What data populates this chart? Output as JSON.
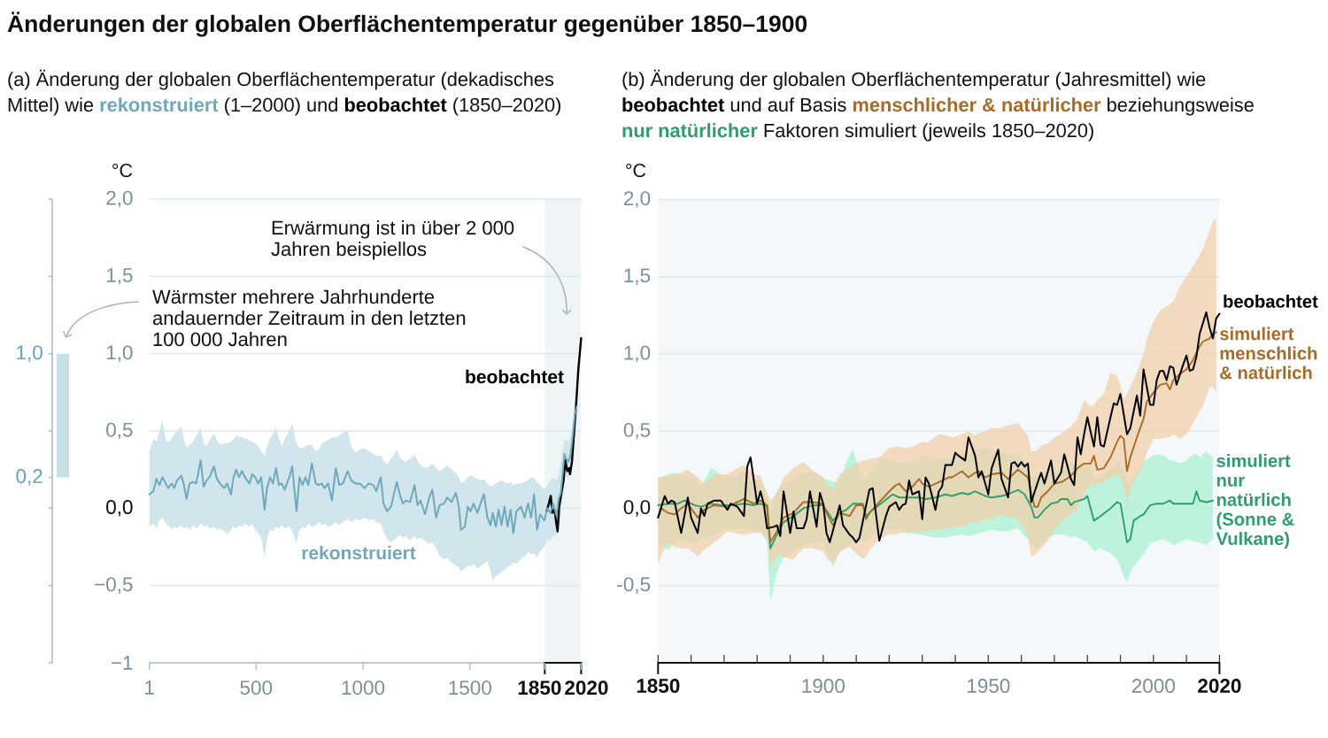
{
  "chart_data": [
    {
      "type": "line",
      "title": "Änderungen der globalen Oberflächentemperatur gegenüber 1850–1900",
      "subtitle": "(a) Änderung der globalen Oberflächentemperatur (dekadisches Mittel) wie **rekonstruiert** (1–2000) und **beobachtet** (1850–2020)",
      "ylabel": "°C",
      "annotations": [
        "Erwärmung ist in über 2 000 Jahren beispiellos"
      ],
      "xlim": [
        1,
        2020
      ],
      "ylim": [
        -1,
        2
      ],
      "xticks": [
        1,
        500,
        1000,
        1500,
        1850,
        2020
      ],
      "yticks": [
        {
          "value": -1,
          "label": "−1"
        },
        {
          "value": -0.5,
          "label": "−0,5"
        },
        {
          "value": 0,
          "label": "0,0"
        },
        {
          "value": 0.5,
          "label": "0,5"
        },
        {
          "value": 1,
          "label": "1,0"
        },
        {
          "value": 1.5,
          "label": "1,5"
        },
        {
          "value": 2,
          "label": "2,0"
        }
      ],
      "grid": "y",
      "bands": [
        {
          "axis": "x",
          "from": 1850,
          "to": 2020,
          "color": "#EFF5F7"
        }
      ],
      "series": [
        {
          "name": "rekonstruiert",
          "color": "#6FA8BC",
          "x": [
            1,
            20,
            34,
            48,
            62,
            78,
            89,
            106,
            117,
            131,
            151,
            161,
            175,
            189,
            206,
            220,
            241,
            255,
            269,
            282,
            303,
            317,
            331,
            351,
            365,
            383,
            393,
            407,
            420,
            434,
            448,
            469,
            482,
            496,
            510,
            524,
            540,
            551,
            565,
            579,
            593,
            607,
            620,
            634,
            655,
            669,
            689,
            703,
            717,
            731,
            744,
            761,
            779,
            793,
            807,
            820,
            837,
            855,
            873,
            889,
            906,
            928,
            945,
            965,
            986,
            1007,
            1027,
            1048,
            1062,
            1083,
            1096,
            1113,
            1131,
            1158,
            1172,
            1186,
            1200,
            1220,
            1241,
            1255,
            1269,
            1290,
            1310,
            1324,
            1342,
            1359,
            1379,
            1393,
            1414,
            1434,
            1448,
            1458,
            1476,
            1490,
            1503,
            1517,
            1535,
            1552,
            1565,
            1582,
            1596,
            1607,
            1621,
            1634,
            1648,
            1662,
            1676,
            1690,
            1703,
            1717,
            1738,
            1756,
            1772,
            1786,
            1800,
            1814,
            1828,
            1848,
            1862,
            1875,
            1890,
            1905,
            1915,
            1925,
            1935,
            1942,
            1950,
            1960,
            1968,
            1978,
            1990,
            2000
          ],
          "values": [
            0.09,
            0.11,
            0.19,
            0.15,
            0.2,
            0.16,
            0.13,
            0.16,
            0.13,
            0.18,
            0.21,
            0.16,
            0.06,
            0.16,
            0.17,
            0.16,
            0.31,
            0.14,
            0.18,
            0.2,
            0.27,
            0.19,
            0.16,
            0.13,
            0.16,
            0.09,
            0.19,
            0.25,
            0.2,
            0.24,
            0.2,
            0.16,
            0.22,
            0.2,
            0.16,
            0.2,
            -0.01,
            0.13,
            0.2,
            0.16,
            0.26,
            0.15,
            0.16,
            0.12,
            0.2,
            0.27,
            -0.02,
            0.2,
            0.15,
            0.2,
            0.15,
            0.29,
            0.16,
            0.15,
            0.16,
            0.13,
            0.16,
            0.05,
            0.26,
            0.15,
            0.16,
            0.24,
            0.18,
            0.16,
            0.16,
            0.13,
            0.16,
            0.15,
            0.11,
            0.2,
            0.03,
            -0.02,
            0.01,
            0.17,
            0.09,
            0.03,
            0.05,
            0.04,
            0.15,
            0.02,
            0.05,
            -0.04,
            0.07,
            0.12,
            -0.06,
            0.02,
            0.03,
            0.07,
            0.04,
            0.1,
            0.01,
            -0.14,
            -0.12,
            0.01,
            -0.02,
            0.03,
            -0.03,
            0.04,
            0.09,
            -0.06,
            -0.11,
            -0.03,
            -0.12,
            -0.01,
            -0.11,
            0.01,
            -0.12,
            -0.01,
            -0.16,
            -0.02,
            0.01,
            -0.06,
            0.03,
            -0.06,
            0.09,
            -0.14,
            -0.04,
            -0.08,
            0.0,
            -0.03,
            0.03,
            -0.05,
            0.06,
            0.1,
            0.24,
            0.35,
            0.32,
            0.3,
            0.33,
            0.43,
            0.6,
            0.66
          ],
          "lower": [
            -0.12,
            -0.1,
            -0.13,
            -0.08,
            -0.06,
            -0.1,
            -0.11,
            -0.14,
            -0.12,
            -0.13,
            -0.11,
            -0.13,
            -0.12,
            -0.14,
            -0.11,
            -0.13,
            -0.1,
            -0.12,
            -0.11,
            -0.13,
            -0.12,
            -0.14,
            -0.13,
            -0.15,
            -0.17,
            -0.14,
            -0.12,
            -0.13,
            -0.11,
            -0.12,
            -0.1,
            -0.12,
            -0.1,
            -0.14,
            -0.16,
            -0.19,
            -0.32,
            -0.2,
            -0.14,
            -0.15,
            -0.12,
            -0.13,
            -0.11,
            -0.13,
            -0.12,
            -0.15,
            -0.23,
            -0.14,
            -0.12,
            -0.13,
            -0.1,
            -0.12,
            -0.11,
            -0.09,
            -0.11,
            -0.1,
            -0.12,
            -0.11,
            -0.09,
            -0.11,
            -0.09,
            -0.07,
            -0.09,
            -0.07,
            -0.08,
            -0.06,
            -0.08,
            -0.07,
            -0.09,
            -0.1,
            -0.15,
            -0.2,
            -0.22,
            -0.19,
            -0.17,
            -0.19,
            -0.18,
            -0.21,
            -0.18,
            -0.2,
            -0.19,
            -0.21,
            -0.23,
            -0.22,
            -0.26,
            -0.31,
            -0.33,
            -0.32,
            -0.35,
            -0.37,
            -0.38,
            -0.41,
            -0.39,
            -0.37,
            -0.38,
            -0.36,
            -0.39,
            -0.37,
            -0.36,
            -0.34,
            -0.4,
            -0.47,
            -0.44,
            -0.43,
            -0.41,
            -0.4,
            -0.38,
            -0.37,
            -0.35,
            -0.36,
            -0.33,
            -0.31,
            -0.28,
            -0.3,
            -0.29,
            -0.32,
            -0.28,
            -0.25,
            -0.2,
            -0.21,
            -0.18,
            -0.17,
            -0.12,
            -0.05,
            0.1,
            0.2,
            0.21,
            0.19,
            0.22,
            0.3,
            0.5,
            0.62
          ],
          "upper": [
            0.37,
            0.45,
            0.43,
            0.5,
            0.57,
            0.44,
            0.43,
            0.45,
            0.48,
            0.5,
            0.53,
            0.45,
            0.39,
            0.41,
            0.43,
            0.47,
            0.52,
            0.42,
            0.4,
            0.44,
            0.48,
            0.44,
            0.41,
            0.42,
            0.42,
            0.43,
            0.44,
            0.47,
            0.46,
            0.46,
            0.45,
            0.44,
            0.43,
            0.42,
            0.4,
            0.37,
            0.34,
            0.4,
            0.45,
            0.48,
            0.52,
            0.45,
            0.4,
            0.45,
            0.5,
            0.55,
            0.42,
            0.39,
            0.39,
            0.4,
            0.41,
            0.41,
            0.37,
            0.38,
            0.42,
            0.43,
            0.44,
            0.46,
            0.46,
            0.47,
            0.49,
            0.5,
            0.4,
            0.36,
            0.38,
            0.39,
            0.37,
            0.35,
            0.34,
            0.34,
            0.31,
            0.28,
            0.32,
            0.38,
            0.33,
            0.31,
            0.3,
            0.32,
            0.35,
            0.31,
            0.28,
            0.26,
            0.27,
            0.29,
            0.26,
            0.24,
            0.26,
            0.28,
            0.25,
            0.23,
            0.2,
            0.16,
            0.18,
            0.2,
            0.21,
            0.2,
            0.19,
            0.18,
            0.19,
            0.16,
            0.14,
            0.15,
            0.16,
            0.17,
            0.18,
            0.17,
            0.16,
            0.17,
            0.15,
            0.16,
            0.16,
            0.17,
            0.18,
            0.2,
            0.2,
            0.17,
            0.15,
            0.12,
            0.15,
            0.18,
            0.2,
            0.18,
            0.22,
            0.3,
            0.4,
            0.45,
            0.44,
            0.43,
            0.45,
            0.52,
            0.66,
            0.7
          ]
        },
        {
          "name": "beobachtet",
          "color": "#000000",
          "x": [
            1858,
            1869,
            1878,
            1885,
            1896,
            1903,
            1910,
            1917,
            1927,
            1938,
            1946,
            1955,
            1963,
            1968,
            1977,
            1986,
            1996,
            2007,
            2020
          ],
          "values": [
            -0.02,
            0.03,
            0.08,
            -0.03,
            -0.01,
            -0.09,
            -0.15,
            0.01,
            0.09,
            0.18,
            0.31,
            0.24,
            0.26,
            0.22,
            0.3,
            0.47,
            0.66,
            0.9,
            1.1
          ]
        }
      ]
    },
    {
      "type": "bar",
      "categories": [
        null
      ],
      "values": [
        0.8
      ],
      "base": [
        0.2
      ],
      "color": "#C8DFE8",
      "ylim": [
        -1,
        2
      ],
      "yticks": [
        {
          "value": -1,
          "label": null
        },
        {
          "value": -0.5,
          "label": null
        },
        {
          "value": 0,
          "label": null
        },
        {
          "value": 0.2,
          "label": "0,2"
        },
        {
          "value": 0.5,
          "label": null
        },
        {
          "value": 1,
          "label": "1,0"
        },
        {
          "value": 1.5,
          "label": null
        },
        {
          "value": 2,
          "label": null
        }
      ],
      "tick_labels": "y",
      "annotations": [
        "Wärmster mehrere Jahrhunderte andauernder Zeitraum in den letzten 100 000 Jahren"
      ]
    },
    {
      "type": "line",
      "title": "(b) Änderung der globalen Oberflächentemperatur (Jahresmittel) wie **beobachtet** und auf Basis **menschlicher & natürlicher** beziehungsweise **nur natürlicher** Faktoren simuliert (jeweils 1850–2020)",
      "ylabel": "°C",
      "xlim": [
        1850,
        2020
      ],
      "ylim": [
        -1,
        2
      ],
      "xticks": [
        1850,
        {
          "value": 1860,
          "label": null
        },
        {
          "value": 1870,
          "label": null
        },
        {
          "value": 1880,
          "label": null
        },
        {
          "value": 1890,
          "label": null
        },
        1900,
        {
          "value": 1910,
          "label": null
        },
        {
          "value": 1920,
          "label": null
        },
        {
          "value": 1930,
          "label": null
        },
        {
          "value": 1940,
          "label": null
        },
        1950,
        {
          "value": 1960,
          "label": null
        },
        {
          "value": 1970,
          "label": null
        },
        {
          "value": 1980,
          "label": null
        },
        {
          "value": 1990,
          "label": null
        },
        2000,
        {
          "value": 2010,
          "label": null
        },
        2020
      ],
      "yticks": [
        {
          "value": -0.5,
          "label": "-0,5"
        },
        {
          "value": 0,
          "label": "0,0"
        },
        {
          "value": 0.5,
          "label": "0,5"
        },
        {
          "value": 1,
          "label": "1,0"
        },
        {
          "value": 1.5,
          "label": "1,5"
        },
        {
          "value": 2,
          "label": "2,0"
        }
      ],
      "grid": "y",
      "bands": [
        {
          "axis": "x",
          "from": 1850,
          "to": 2020,
          "color": "#F4F8FA"
        }
      ],
      "series": [
        {
          "name": "beobachtet",
          "color": "#000000",
          "x": [
            1850,
            1852,
            1853,
            1854,
            1855,
            1857,
            1859,
            1860,
            1862,
            1863,
            1864,
            1865,
            1867,
            1869,
            1871,
            1872,
            1874,
            1875,
            1876,
            1877,
            1878,
            1880,
            1881,
            1882,
            1883,
            1885,
            1886,
            1887,
            1888,
            1890,
            1891,
            1892,
            1894,
            1895,
            1896,
            1898,
            1899,
            1900,
            1901,
            1902,
            1904,
            1905,
            1906,
            1908,
            1909,
            1910,
            1911,
            1913,
            1914,
            1915,
            1917,
            1919,
            1920,
            1922,
            1923,
            1924,
            1925,
            1926,
            1927,
            1929,
            1930,
            1931,
            1932,
            1934,
            1935,
            1936,
            1937,
            1939,
            1940,
            1941,
            1943,
            1944,
            1946,
            1947,
            1948,
            1950,
            1951,
            1953,
            1954,
            1956,
            1957,
            1958,
            1959,
            1960,
            1961,
            1962,
            1963,
            1965,
            1966,
            1967,
            1969,
            1970,
            1972,
            1973,
            1975,
            1976,
            1977,
            1978,
            1979,
            1980,
            1982,
            1983,
            1984,
            1985,
            1987,
            1988,
            1989,
            1990,
            1992,
            1993,
            1995,
            1996,
            1997,
            1999,
            2000,
            2001,
            2002,
            2003,
            2004,
            2005,
            2006,
            2007,
            2009,
            2010,
            2011,
            2012,
            2013,
            2014,
            2016,
            2017,
            2018,
            2019,
            2020
          ],
          "values": [
            -0.06,
            0.08,
            0.03,
            0.05,
            0.04,
            -0.16,
            0.07,
            -0.06,
            -0.16,
            0.0,
            -0.05,
            0.03,
            0.05,
            0.05,
            -0.01,
            0.03,
            0.01,
            -0.02,
            -0.05,
            0.27,
            0.33,
            0.03,
            0.11,
            0.03,
            -0.13,
            -0.12,
            -0.11,
            -0.18,
            0.11,
            -0.16,
            -0.02,
            -0.13,
            -0.13,
            -0.07,
            0.11,
            -0.12,
            0.1,
            0.03,
            -0.16,
            -0.22,
            -0.06,
            0.02,
            -0.11,
            -0.17,
            -0.19,
            -0.22,
            -0.19,
            0.02,
            0.12,
            0.13,
            -0.21,
            -0.05,
            0.01,
            0.04,
            -0.01,
            0.02,
            0.03,
            0.18,
            0.09,
            0.11,
            -0.07,
            0.2,
            0.16,
            -0.01,
            0.11,
            0.14,
            0.28,
            0.28,
            0.36,
            0.34,
            0.31,
            0.46,
            0.34,
            0.2,
            0.24,
            0.09,
            0.26,
            0.38,
            0.19,
            0.07,
            0.29,
            0.3,
            0.27,
            0.3,
            0.27,
            0.29,
            0.04,
            0.17,
            0.23,
            0.16,
            0.31,
            0.16,
            0.23,
            0.35,
            0.19,
            0.15,
            0.46,
            0.35,
            0.48,
            0.59,
            0.4,
            0.59,
            0.41,
            0.4,
            0.59,
            0.68,
            0.67,
            0.74,
            0.48,
            0.52,
            0.73,
            0.6,
            0.9,
            0.67,
            0.67,
            0.83,
            0.89,
            0.89,
            0.83,
            0.92,
            0.91,
            0.8,
            0.93,
            0.99,
            0.89,
            0.9,
            0.98,
            1.13,
            1.27,
            1.17,
            1.1,
            1.23,
            1.26
          ]
        },
        {
          "name": "simuliert menschlich & natürlich",
          "color": "#A86B27",
          "x": [
            1850,
            1851,
            1853,
            1855,
            1857,
            1859,
            1862,
            1864,
            1867,
            1871,
            1873,
            1876,
            1879,
            1881,
            1883,
            1884,
            1886,
            1888,
            1891,
            1894,
            1897,
            1900,
            1901,
            1903,
            1905,
            1908,
            1910,
            1912,
            1913,
            1914,
            1917,
            1920,
            1922,
            1923,
            1925,
            1927,
            1929,
            1930,
            1932,
            1935,
            1938,
            1939,
            1942,
            1944,
            1946,
            1947,
            1949,
            1951,
            1954,
            1956,
            1959,
            1962,
            1963,
            1964,
            1965,
            1966,
            1968,
            1970,
            1972,
            1973,
            1975,
            1977,
            1979,
            1981,
            1982,
            1983,
            1985,
            1987,
            1989,
            1990,
            1991,
            1992,
            1993,
            1995,
            1997,
            1998,
            2000,
            2002,
            2004,
            2005,
            2006,
            2008,
            2010,
            2012,
            2014,
            2015,
            2017,
            2018,
            2019
          ],
          "values": [
            -0.06,
            0.0,
            -0.03,
            -0.04,
            0.0,
            0.03,
            -0.06,
            -0.01,
            0.02,
            0.01,
            0.03,
            0.06,
            0.03,
            0.05,
            0.02,
            -0.22,
            -0.15,
            -0.06,
            -0.03,
            0.04,
            0.04,
            0.03,
            -0.03,
            -0.11,
            -0.03,
            -0.05,
            0.02,
            0.02,
            -0.07,
            -0.03,
            0.04,
            0.11,
            0.15,
            0.16,
            0.11,
            0.14,
            0.19,
            0.16,
            0.14,
            0.17,
            0.2,
            0.2,
            0.24,
            0.2,
            0.23,
            0.24,
            0.2,
            0.22,
            0.23,
            0.19,
            0.25,
            0.2,
            0.1,
            0.01,
            0.01,
            0.07,
            0.11,
            0.16,
            0.17,
            0.18,
            0.21,
            0.26,
            0.29,
            0.29,
            0.34,
            0.25,
            0.26,
            0.33,
            0.43,
            0.47,
            0.45,
            0.24,
            0.33,
            0.46,
            0.58,
            0.69,
            0.75,
            0.8,
            0.81,
            0.77,
            0.83,
            0.87,
            0.9,
            0.96,
            1.05,
            1.08,
            1.1,
            1.13,
            1.14
          ],
          "lower": [
            -0.36,
            -0.3,
            -0.22,
            -0.25,
            -0.26,
            -0.26,
            -0.31,
            -0.27,
            -0.22,
            -0.15,
            -0.16,
            -0.17,
            -0.16,
            -0.16,
            -0.2,
            -0.38,
            -0.3,
            -0.32,
            -0.33,
            -0.26,
            -0.26,
            -0.28,
            -0.32,
            -0.36,
            -0.28,
            -0.25,
            -0.29,
            -0.33,
            -0.31,
            -0.27,
            -0.2,
            -0.17,
            -0.17,
            -0.16,
            -0.16,
            -0.15,
            -0.16,
            -0.15,
            -0.14,
            -0.14,
            -0.13,
            -0.12,
            -0.12,
            -0.1,
            -0.09,
            -0.09,
            -0.07,
            -0.07,
            -0.04,
            -0.05,
            -0.07,
            -0.18,
            -0.31,
            -0.3,
            -0.28,
            -0.26,
            -0.21,
            -0.14,
            -0.09,
            -0.07,
            -0.04,
            0.0,
            0.1,
            0.15,
            0.15,
            0.16,
            0.17,
            0.2,
            0.22,
            0.2,
            0.14,
            0.04,
            0.12,
            0.2,
            0.29,
            0.36,
            0.45,
            0.45,
            0.46,
            0.46,
            0.48,
            0.45,
            0.48,
            0.55,
            0.63,
            0.66,
            0.78,
            0.79,
            0.75
          ],
          "upper": [
            0.2,
            0.2,
            0.21,
            0.21,
            0.23,
            0.25,
            0.2,
            0.16,
            0.22,
            0.22,
            0.25,
            0.28,
            0.22,
            0.21,
            0.1,
            0.05,
            0.1,
            0.2,
            0.26,
            0.3,
            0.24,
            0.2,
            0.16,
            0.12,
            0.22,
            0.26,
            0.29,
            0.31,
            0.31,
            0.32,
            0.33,
            0.39,
            0.4,
            0.4,
            0.39,
            0.4,
            0.42,
            0.43,
            0.43,
            0.48,
            0.47,
            0.46,
            0.48,
            0.5,
            0.47,
            0.49,
            0.5,
            0.52,
            0.52,
            0.54,
            0.55,
            0.47,
            0.37,
            0.37,
            0.38,
            0.41,
            0.42,
            0.46,
            0.48,
            0.5,
            0.53,
            0.58,
            0.7,
            0.66,
            0.67,
            0.7,
            0.74,
            0.88,
            0.86,
            0.8,
            0.71,
            0.74,
            0.79,
            0.88,
            1.0,
            1.1,
            1.21,
            1.28,
            1.31,
            1.32,
            1.34,
            1.44,
            1.5,
            1.57,
            1.64,
            1.68,
            1.8,
            1.86,
            1.88
          ]
        },
        {
          "name": "simuliert nur natürlich (Sonne & Vulkane)",
          "color": "#2E9E6E",
          "x": [
            1850,
            1853,
            1856,
            1858,
            1861,
            1863,
            1866,
            1869,
            1872,
            1876,
            1879,
            1881,
            1883,
            1884,
            1886,
            1888,
            1891,
            1894,
            1897,
            1900,
            1903,
            1905,
            1907,
            1909,
            1912,
            1913,
            1915,
            1918,
            1921,
            1923,
            1926,
            1929,
            1931,
            1934,
            1937,
            1939,
            1942,
            1944,
            1946,
            1949,
            1951,
            1954,
            1956,
            1959,
            1961,
            1963,
            1964,
            1965,
            1967,
            1969,
            1971,
            1972,
            1974,
            1975,
            1976,
            1979,
            1980,
            1982,
            1984,
            1987,
            1989,
            1990,
            1991,
            1992,
            1993,
            1994,
            1996,
            1997,
            1999,
            2001,
            2003,
            2005,
            2006,
            2008,
            2010,
            2012,
            2013,
            2014,
            2016,
            2018
          ],
          "values": [
            0.02,
            0.03,
            0.03,
            0.05,
            0.02,
            0.01,
            0.03,
            0.02,
            0.02,
            0.03,
            0.02,
            0.03,
            0.01,
            -0.26,
            -0.17,
            -0.09,
            -0.05,
            0.0,
            0.02,
            0.02,
            -0.08,
            -0.03,
            -0.01,
            0.03,
            0.03,
            -0.05,
            -0.01,
            0.04,
            0.09,
            0.07,
            0.07,
            0.07,
            0.06,
            0.07,
            0.09,
            0.08,
            0.1,
            0.09,
            0.11,
            0.08,
            0.07,
            0.08,
            0.09,
            0.12,
            0.09,
            0.01,
            -0.06,
            -0.06,
            -0.01,
            0.03,
            0.04,
            0.06,
            0.06,
            0.02,
            0.04,
            0.06,
            0.08,
            -0.08,
            -0.05,
            0.0,
            0.04,
            0.03,
            -0.09,
            -0.22,
            -0.2,
            -0.08,
            -0.05,
            -0.04,
            0.02,
            0.03,
            0.03,
            0.05,
            0.03,
            0.03,
            0.03,
            0.03,
            0.11,
            0.05,
            0.04,
            0.05
          ],
          "lower": [
            -0.22,
            -0.27,
            -0.2,
            -0.21,
            -0.22,
            -0.2,
            -0.18,
            -0.15,
            -0.13,
            -0.13,
            -0.14,
            -0.15,
            -0.22,
            -0.6,
            -0.41,
            -0.32,
            -0.27,
            -0.24,
            -0.22,
            -0.22,
            -0.38,
            -0.28,
            -0.25,
            -0.22,
            -0.21,
            -0.21,
            -0.18,
            -0.13,
            -0.14,
            -0.14,
            -0.16,
            -0.17,
            -0.18,
            -0.19,
            -0.19,
            -0.18,
            -0.17,
            -0.18,
            -0.17,
            -0.15,
            -0.14,
            -0.15,
            -0.15,
            -0.13,
            -0.18,
            -0.22,
            -0.25,
            -0.26,
            -0.22,
            -0.18,
            -0.17,
            -0.17,
            -0.18,
            -0.19,
            -0.18,
            -0.21,
            -0.22,
            -0.28,
            -0.26,
            -0.29,
            -0.33,
            -0.38,
            -0.44,
            -0.48,
            -0.42,
            -0.38,
            -0.32,
            -0.3,
            -0.23,
            -0.21,
            -0.2,
            -0.22,
            -0.24,
            -0.22,
            -0.2,
            -0.21,
            -0.22,
            -0.22,
            -0.24,
            -0.2
          ],
          "upper": [
            0.19,
            0.22,
            0.23,
            0.21,
            0.19,
            0.14,
            0.26,
            0.22,
            0.2,
            0.24,
            0.18,
            0.18,
            0.1,
            -0.03,
            0.12,
            0.16,
            0.2,
            0.23,
            0.24,
            0.2,
            0.17,
            0.18,
            0.3,
            0.38,
            0.18,
            0.2,
            0.27,
            0.32,
            0.31,
            0.3,
            0.29,
            0.32,
            0.34,
            0.32,
            0.32,
            0.33,
            0.35,
            0.35,
            0.37,
            0.4,
            0.38,
            0.37,
            0.35,
            0.35,
            0.3,
            0.2,
            0.2,
            0.21,
            0.24,
            0.24,
            0.25,
            0.26,
            0.29,
            0.3,
            0.28,
            0.29,
            0.29,
            0.2,
            0.2,
            0.25,
            0.29,
            0.27,
            0.25,
            0.17,
            0.14,
            0.2,
            0.27,
            0.3,
            0.33,
            0.35,
            0.34,
            0.31,
            0.31,
            0.29,
            0.31,
            0.35,
            0.35,
            0.33,
            0.37,
            0.33
          ]
        }
      ]
    }
  ]
}
